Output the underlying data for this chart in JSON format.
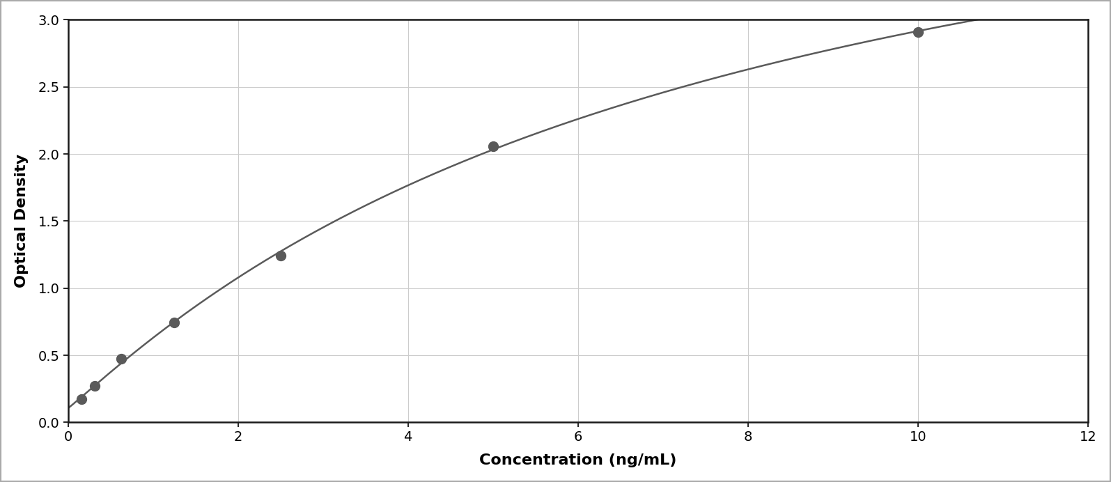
{
  "x_data": [
    0.156,
    0.313,
    0.625,
    1.25,
    2.5,
    5.0,
    10.0
  ],
  "y_data": [
    0.175,
    0.27,
    0.475,
    0.745,
    1.245,
    2.055,
    2.91
  ],
  "point_color": "#5a5a5a",
  "line_color": "#5a5a5a",
  "xlabel": "Concentration (ng/mL)",
  "ylabel": "Optical Density",
  "xlim": [
    0,
    12
  ],
  "ylim": [
    0,
    3
  ],
  "xticks": [
    0,
    2,
    4,
    6,
    8,
    10,
    12
  ],
  "yticks": [
    0,
    0.5,
    1.0,
    1.5,
    2.0,
    2.5,
    3.0
  ],
  "xlabel_fontsize": 16,
  "ylabel_fontsize": 16,
  "tick_fontsize": 14,
  "marker_size": 10,
  "line_width": 1.8,
  "figure_bg": "#ffffff",
  "plot_bg_color": "#ffffff",
  "grid_color": "#cccccc",
  "spine_color": "#1a1a1a",
  "outer_border_color": "#aaaaaa",
  "curve_x_end": 11.0
}
